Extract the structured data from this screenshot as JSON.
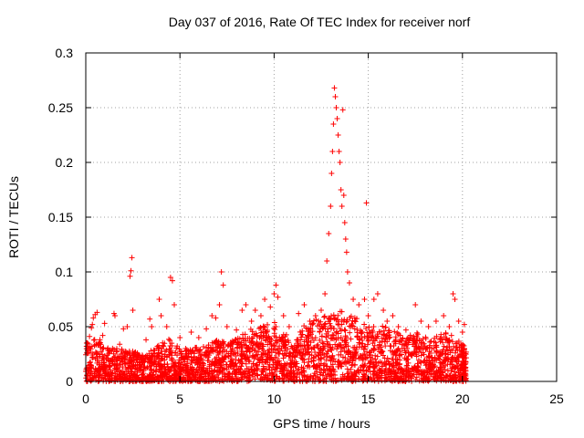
{
  "chart_data": {
    "type": "scatter",
    "title": "Day 037 of 2016, Rate Of TEC Index for receiver norf",
    "xlabel": "GPS time / hours",
    "ylabel": "ROTI / TECUs",
    "xlim": [
      0,
      25
    ],
    "ylim": [
      0,
      0.3
    ],
    "xticks": [
      0,
      5,
      10,
      15,
      20,
      25
    ],
    "yticks": [
      0,
      0.05,
      0.1,
      0.15,
      0.2,
      0.25,
      0.3
    ],
    "xtick_labels": [
      "0",
      "5",
      "10",
      "15",
      "20",
      "25"
    ],
    "ytick_labels": [
      "0",
      "0.05",
      "0.1",
      "0.15",
      "0.2",
      "0.25",
      "0.3"
    ],
    "grid": true,
    "marker": "+",
    "color": "#ff0000",
    "series": [
      {
        "name": "ROTI",
        "points": [
          [
            0.1,
            0.028
          ],
          [
            0.2,
            0.041
          ],
          [
            0.3,
            0.049
          ],
          [
            0.35,
            0.052
          ],
          [
            0.4,
            0.058
          ],
          [
            0.5,
            0.061
          ],
          [
            0.6,
            0.063
          ],
          [
            0.75,
            0.038
          ],
          [
            0.9,
            0.042
          ],
          [
            1.0,
            0.053
          ],
          [
            1.1,
            0.021
          ],
          [
            1.3,
            0.028
          ],
          [
            1.5,
            0.062
          ],
          [
            1.55,
            0.06
          ],
          [
            1.8,
            0.034
          ],
          [
            2.0,
            0.048
          ],
          [
            2.2,
            0.05
          ],
          [
            2.35,
            0.096
          ],
          [
            2.4,
            0.101
          ],
          [
            2.45,
            0.113
          ],
          [
            2.5,
            0.065
          ],
          [
            2.8,
            0.022
          ],
          [
            3.0,
            0.024
          ],
          [
            3.2,
            0.038
          ],
          [
            3.4,
            0.057
          ],
          [
            3.5,
            0.05
          ],
          [
            3.8,
            0.032
          ],
          [
            3.9,
            0.075
          ],
          [
            4.0,
            0.06
          ],
          [
            4.3,
            0.05
          ],
          [
            4.5,
            0.095
          ],
          [
            4.6,
            0.092
          ],
          [
            4.7,
            0.07
          ],
          [
            5.0,
            0.04
          ],
          [
            5.3,
            0.03
          ],
          [
            5.6,
            0.045
          ],
          [
            6.0,
            0.04
          ],
          [
            6.4,
            0.048
          ],
          [
            6.7,
            0.06
          ],
          [
            6.9,
            0.058
          ],
          [
            7.1,
            0.07
          ],
          [
            7.2,
            0.1
          ],
          [
            7.3,
            0.088
          ],
          [
            7.5,
            0.05
          ],
          [
            7.8,
            0.035
          ],
          [
            8.0,
            0.047
          ],
          [
            8.3,
            0.065
          ],
          [
            8.5,
            0.07
          ],
          [
            8.8,
            0.055
          ],
          [
            9.0,
            0.065
          ],
          [
            9.3,
            0.06
          ],
          [
            9.5,
            0.075
          ],
          [
            9.8,
            0.068
          ],
          [
            10.0,
            0.08
          ],
          [
            10.1,
            0.088
          ],
          [
            10.2,
            0.077
          ],
          [
            10.5,
            0.06
          ],
          [
            10.8,
            0.05
          ],
          [
            11.0,
            0.03
          ],
          [
            11.3,
            0.062
          ],
          [
            11.6,
            0.07
          ],
          [
            11.9,
            0.055
          ],
          [
            12.2,
            0.06
          ],
          [
            12.5,
            0.065
          ],
          [
            12.7,
            0.08
          ],
          [
            12.8,
            0.11
          ],
          [
            12.9,
            0.135
          ],
          [
            13.0,
            0.16
          ],
          [
            13.05,
            0.19
          ],
          [
            13.1,
            0.21
          ],
          [
            13.15,
            0.235
          ],
          [
            13.2,
            0.268
          ],
          [
            13.25,
            0.26
          ],
          [
            13.3,
            0.25
          ],
          [
            13.35,
            0.24
          ],
          [
            13.4,
            0.225
          ],
          [
            13.45,
            0.21
          ],
          [
            13.5,
            0.2
          ],
          [
            13.55,
            0.175
          ],
          [
            13.6,
            0.16
          ],
          [
            13.65,
            0.248
          ],
          [
            13.7,
            0.17
          ],
          [
            13.75,
            0.145
          ],
          [
            13.8,
            0.13
          ],
          [
            13.85,
            0.118
          ],
          [
            13.9,
            0.1
          ],
          [
            14.0,
            0.09
          ],
          [
            14.2,
            0.075
          ],
          [
            14.5,
            0.07
          ],
          [
            14.8,
            0.075
          ],
          [
            14.9,
            0.163
          ],
          [
            15.0,
            0.06
          ],
          [
            15.3,
            0.075
          ],
          [
            15.5,
            0.08
          ],
          [
            15.8,
            0.065
          ],
          [
            16.0,
            0.055
          ],
          [
            16.3,
            0.06
          ],
          [
            16.6,
            0.05
          ],
          [
            17.0,
            0.047
          ],
          [
            17.5,
            0.07
          ],
          [
            17.8,
            0.055
          ],
          [
            18.2,
            0.05
          ],
          [
            18.6,
            0.055
          ],
          [
            19.0,
            0.06
          ],
          [
            19.3,
            0.05
          ],
          [
            19.5,
            0.08
          ],
          [
            19.6,
            0.075
          ],
          [
            19.8,
            0.055
          ],
          [
            20.0,
            0.045
          ],
          [
            20.1,
            0.052
          ]
        ]
      }
    ],
    "dense_cover": [
      [
        0.0,
        0.0,
        0.035
      ],
      [
        0.5,
        0.0,
        0.04
      ],
      [
        1.0,
        0.0,
        0.032
      ],
      [
        1.5,
        0.0,
        0.03
      ],
      [
        2.0,
        0.0,
        0.03
      ],
      [
        2.5,
        0.0,
        0.028
      ],
      [
        3.0,
        0.0,
        0.025
      ],
      [
        3.5,
        0.0,
        0.03
      ],
      [
        4.0,
        0.0,
        0.035
      ],
      [
        4.5,
        0.0,
        0.04
      ],
      [
        5.0,
        0.0,
        0.03
      ],
      [
        5.5,
        0.0,
        0.03
      ],
      [
        6.0,
        0.0,
        0.032
      ],
      [
        6.5,
        0.0,
        0.035
      ],
      [
        7.0,
        0.0,
        0.038
      ],
      [
        7.5,
        0.0,
        0.035
      ],
      [
        8.0,
        0.0,
        0.04
      ],
      [
        8.5,
        0.0,
        0.045
      ],
      [
        9.0,
        0.0,
        0.05
      ],
      [
        9.5,
        0.0,
        0.052
      ],
      [
        10.0,
        0.0,
        0.055
      ],
      [
        10.5,
        0.0,
        0.05
      ],
      [
        11.0,
        0.0,
        0.03
      ],
      [
        11.5,
        0.0,
        0.05
      ],
      [
        12.0,
        0.0,
        0.055
      ],
      [
        12.5,
        0.0,
        0.06
      ],
      [
        13.0,
        0.0,
        0.06
      ],
      [
        13.5,
        0.0,
        0.065
      ],
      [
        14.0,
        0.0,
        0.06
      ],
      [
        14.5,
        0.0,
        0.058
      ],
      [
        15.0,
        0.0,
        0.05
      ],
      [
        15.5,
        0.0,
        0.052
      ],
      [
        16.0,
        0.0,
        0.05
      ],
      [
        16.5,
        0.0,
        0.045
      ],
      [
        17.0,
        0.0,
        0.04
      ],
      [
        17.5,
        0.0,
        0.045
      ],
      [
        18.0,
        0.0,
        0.042
      ],
      [
        18.5,
        0.0,
        0.04
      ],
      [
        19.0,
        0.0,
        0.045
      ],
      [
        19.5,
        0.0,
        0.042
      ],
      [
        20.0,
        0.0,
        0.035
      ],
      [
        20.2,
        0.0,
        0.03
      ]
    ]
  }
}
